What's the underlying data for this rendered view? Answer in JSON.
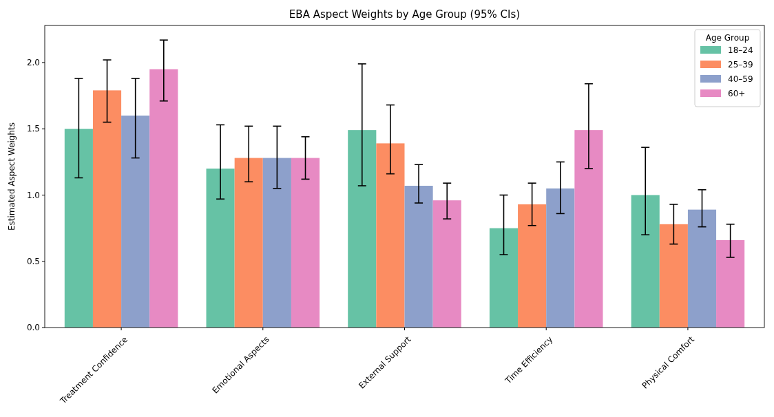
{
  "chart_data": {
    "type": "bar",
    "title": "EBA Aspect Weights by Age Group (95% CIs)",
    "ylabel": "Estimated Aspect Weights",
    "legend_title": "Age Group",
    "legend": "top right",
    "grid": false,
    "categories": [
      "Treatment Confidence",
      "Emotional Aspects",
      "External Support",
      "Time Efficiency",
      "Physical Comfort"
    ],
    "ylim": [
      0,
      2.28
    ],
    "yticks": [
      {
        "value": 0,
        "label": "0.0"
      },
      {
        "value": 0.5,
        "label": "0.5"
      },
      {
        "value": 1,
        "label": "1.0"
      },
      {
        "value": 1.5,
        "label": "1.5"
      },
      {
        "value": 2,
        "label": "2.0"
      }
    ],
    "series": [
      {
        "name": "18–24",
        "color": "#66c2a5",
        "values": [
          1.5,
          1.2,
          1.49,
          0.75,
          1.0
        ],
        "errors": [
          [
            1.13,
            1.88
          ],
          [
            0.97,
            1.53
          ],
          [
            1.07,
            1.99
          ],
          [
            0.55,
            1.0
          ],
          [
            0.7,
            1.36
          ]
        ]
      },
      {
        "name": "25–39",
        "color": "#fc8d62",
        "values": [
          1.79,
          1.28,
          1.39,
          0.93,
          0.78
        ],
        "errors": [
          [
            1.55,
            2.02
          ],
          [
            1.1,
            1.52
          ],
          [
            1.16,
            1.68
          ],
          [
            0.77,
            1.09
          ],
          [
            0.63,
            0.93
          ]
        ]
      },
      {
        "name": "40–59",
        "color": "#8da0cb",
        "values": [
          1.6,
          1.28,
          1.07,
          1.05,
          0.89
        ],
        "errors": [
          [
            1.28,
            1.88
          ],
          [
            1.05,
            1.52
          ],
          [
            0.94,
            1.23
          ],
          [
            0.86,
            1.25
          ],
          [
            0.76,
            1.04
          ]
        ]
      },
      {
        "name": "60+",
        "color": "#e78ac3",
        "values": [
          1.95,
          1.28,
          0.96,
          1.49,
          0.66
        ],
        "errors": [
          [
            1.71,
            2.17
          ],
          [
            1.12,
            1.44
          ],
          [
            0.82,
            1.09
          ],
          [
            1.2,
            1.84
          ],
          [
            0.53,
            0.78
          ]
        ]
      }
    ]
  }
}
